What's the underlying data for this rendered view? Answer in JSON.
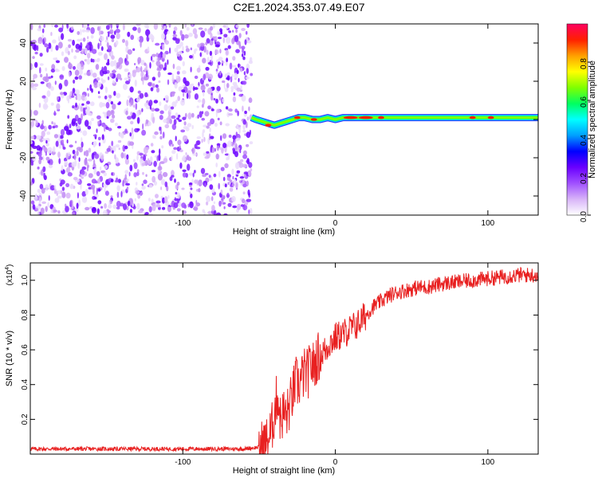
{
  "title": "C2E1.2024.353.07.49.E07",
  "chart_data": [
    {
      "type": "heatmap",
      "xlabel": "Height of straight line (km)",
      "ylabel": "Frequency (Hz)",
      "xlim": [
        -200,
        133
      ],
      "ylim": [
        -50,
        50
      ],
      "xticks": [
        -100,
        0,
        100
      ],
      "yticks": [
        -40,
        -20,
        0,
        20,
        40
      ],
      "noise_region_x": [
        -200,
        -55
      ],
      "signal_line": {
        "x": [
          -55,
          -52,
          -48,
          -44,
          -40,
          -36,
          -32,
          -28,
          -24,
          -20,
          -15,
          -10,
          -5,
          0,
          5,
          10,
          15,
          20,
          30,
          40,
          50,
          60,
          70,
          80,
          90,
          100,
          110,
          120,
          133
        ],
        "freq_hz": [
          1,
          0,
          -1,
          -2,
          -3,
          -2,
          -1,
          0,
          1,
          1,
          0,
          0,
          1,
          0,
          1,
          1,
          1,
          1,
          1,
          1,
          1,
          1,
          1,
          1,
          1,
          1,
          1,
          1,
          1
        ]
      },
      "colorbar": {
        "label": "Normalized spectral amplitude",
        "range": [
          0,
          1
        ],
        "ticks": [
          "0.0",
          "0.2",
          "0.4",
          "0.6",
          "0.8"
        ],
        "colors": [
          "#ffffff",
          "#d8b4f8",
          "#a050ff",
          "#6a00ff",
          "#0000ff",
          "#00a0ff",
          "#00ffff",
          "#00ff60",
          "#80ff00",
          "#ffff00",
          "#ffa000",
          "#ff2000",
          "#ff0060"
        ]
      }
    },
    {
      "type": "line",
      "xlabel": "Height of straight line (km)",
      "ylabel": "SNR (10 * v/v)",
      "multiplier_label": "(x10",
      "multiplier_exp": "4",
      "xlim": [
        -200,
        133
      ],
      "ylim": [
        0,
        11000
      ],
      "xticks": [
        -100,
        0,
        100
      ],
      "ytick_labels": [
        "0.2",
        "0.4",
        "0.6",
        "0.8",
        "1.0"
      ],
      "yticks": [
        2000,
        4000,
        6000,
        8000,
        10000
      ],
      "line_color": "#e82020",
      "series": [
        {
          "x": [
            -200,
            -180,
            -160,
            -140,
            -120,
            -100,
            -80,
            -60,
            -50,
            -45,
            -42,
            -40,
            -38,
            -36,
            -34,
            -32,
            -30,
            -28,
            -26,
            -24,
            -22,
            -20,
            -18,
            -16,
            -14,
            -12,
            -10,
            -8,
            -6,
            -4,
            -2,
            0,
            5,
            10,
            15,
            20,
            25,
            30,
            35,
            40,
            45,
            50,
            55,
            60,
            70,
            80,
            90,
            100,
            110,
            120,
            130
          ],
          "values": [
            300,
            300,
            300,
            300,
            300,
            300,
            300,
            300,
            400,
            700,
            1300,
            2300,
            3500,
            2000,
            2400,
            2200,
            2800,
            3400,
            4200,
            4000,
            4400,
            4700,
            4600,
            5200,
            5000,
            5600,
            5500,
            5900,
            6000,
            6400,
            6500,
            6700,
            6900,
            7200,
            7500,
            8000,
            8500,
            8800,
            9100,
            9300,
            9400,
            9500,
            9600,
            9600,
            9800,
            9900,
            10000,
            10100,
            10200,
            10300,
            10300
          ]
        }
      ]
    }
  ]
}
